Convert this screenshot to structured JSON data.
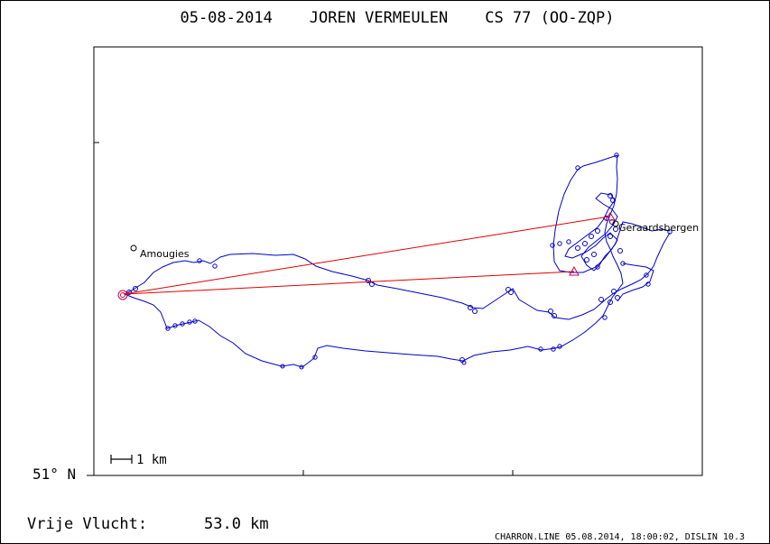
{
  "header": {
    "title": "05-08-2014    JOREN VERMEULEN    CS 77 (OO-ZQP)"
  },
  "map": {
    "latitude_label": "51° N",
    "scale_label": "1 km",
    "places": [
      {
        "name": "Amougies"
      },
      {
        "name": "Geraardsbergen"
      }
    ],
    "colors": {
      "track": "#0000cc",
      "task_line": "#e00000",
      "turnpoint": "#cc0044",
      "frame": "#000000"
    }
  },
  "footer": {
    "distance_label": "Vrije Vlucht:",
    "distance_value": "53.0 km",
    "credits": "CHARRON.LINE 05.08.2014, 18:00:02, DISLIN 10.3"
  }
}
